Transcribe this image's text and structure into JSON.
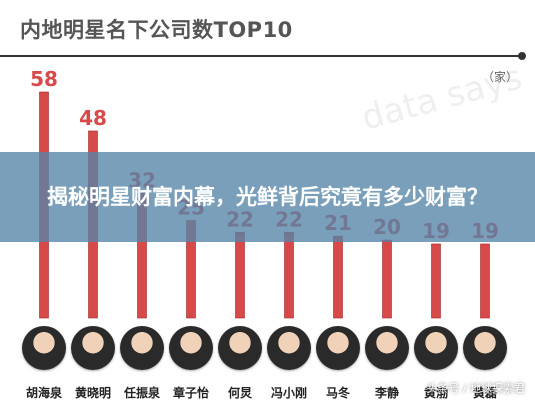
{
  "chart_data": {
    "type": "bar",
    "title": "内地明星名下公司数TOP10",
    "unit": "（家）",
    "categories": [
      "胡海泉",
      "黄晓明",
      "任振泉",
      "章子怡",
      "何炅",
      "冯小刚",
      "马冬",
      "李静",
      "黄渤",
      "黄磊"
    ],
    "values": [
      58,
      48,
      32,
      25,
      22,
      22,
      21,
      20,
      19,
      19
    ],
    "ylim": [
      0,
      60
    ],
    "bar_color": "#d84a4a",
    "label_color": "#d84a4a"
  },
  "banner": {
    "text": "揭秘明星财富内幕，光鲜背后究竟有多少财富？"
  },
  "watermark": "data says",
  "footer": "头条号 / 地球探索君",
  "colors": {
    "banner_bg": "#5484a8",
    "title": "#555555"
  }
}
